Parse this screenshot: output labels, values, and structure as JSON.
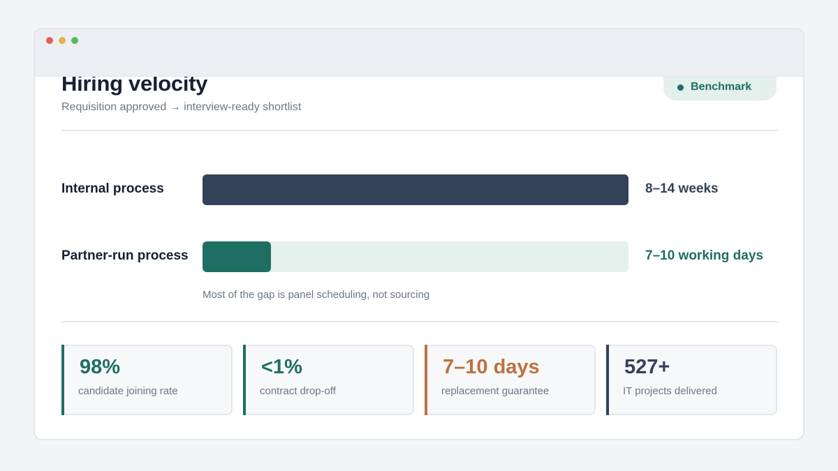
{
  "header": {
    "title": "Hiring velocity",
    "subtitle": "Requisition approved → interview-ready shortlist",
    "badge": {
      "label": "Benchmark",
      "icon": "status-dot-icon",
      "color": "#1f6e64"
    }
  },
  "comparison": {
    "rows": [
      {
        "label": "Internal process",
        "value": "8–14 weeks",
        "fill_fraction": 1.0,
        "color": "#334259"
      },
      {
        "label": "Partner-run process",
        "value": "7–10 working days",
        "fill_fraction": 0.16,
        "color": "#1f6e64"
      }
    ],
    "note": "Most of the gap is panel scheduling, not sourcing"
  },
  "stats": [
    {
      "value": "98%",
      "caption": "candidate joining rate",
      "color": "#1f6e64"
    },
    {
      "value": "<1%",
      "caption": "contract drop-off",
      "color": "#1f6e64"
    },
    {
      "value": "7–10 days",
      "caption": "replacement guarantee",
      "color": "#c0703f"
    },
    {
      "value": "527+",
      "caption": "IT projects delivered",
      "color": "#334259"
    }
  ]
}
